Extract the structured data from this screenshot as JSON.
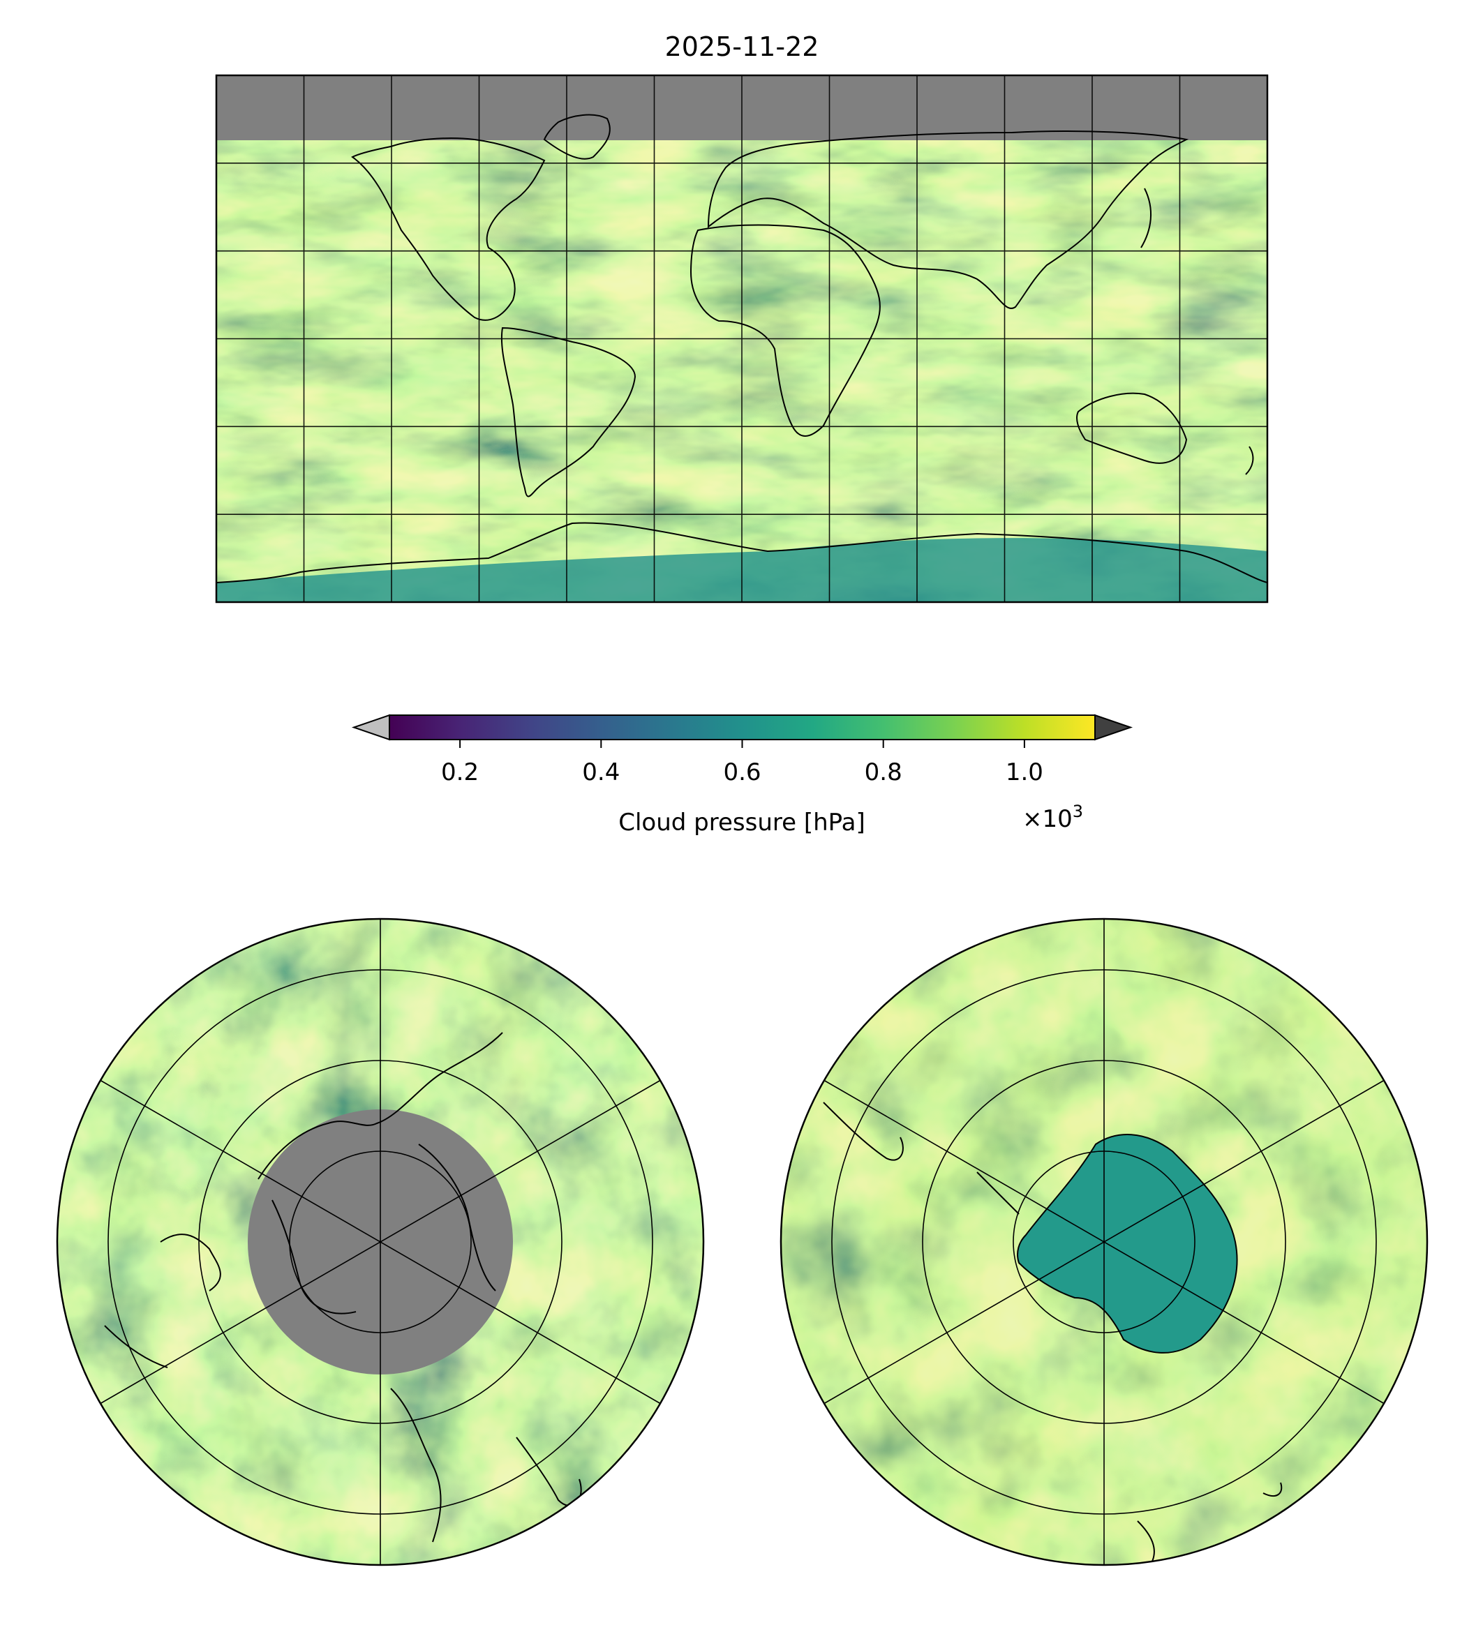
{
  "figure": {
    "title": "2025-11-22"
  },
  "colorbar": {
    "label": "Cloud pressure [hPa]",
    "multiplier_base": "×10",
    "multiplier_exponent": "3",
    "ticks": [
      {
        "value": 0.2,
        "label": "0.2"
      },
      {
        "value": 0.4,
        "label": "0.4"
      },
      {
        "value": 0.6,
        "label": "0.6"
      },
      {
        "value": 0.8,
        "label": "0.8"
      },
      {
        "value": 1.0,
        "label": "1.0"
      }
    ],
    "range": [
      0.1,
      1.1
    ],
    "extend": "both",
    "under_color": "#c0c0c0",
    "over_color": "#404040",
    "colormap": [
      "#440154",
      "#482475",
      "#414487",
      "#355f8d",
      "#2a788e",
      "#21918c",
      "#22a884",
      "#44bf70",
      "#7ad151",
      "#bddf26",
      "#fde725"
    ]
  },
  "maps": {
    "global": {
      "projection": "plate-carree",
      "meridian_step_deg": 30,
      "parallel_step_deg": 30,
      "nodata_color": "#808080"
    },
    "north_polar": {
      "projection": "north-polar-stereographic",
      "nodata_color": "#808080"
    },
    "south_polar": {
      "projection": "south-polar-stereographic"
    }
  }
}
